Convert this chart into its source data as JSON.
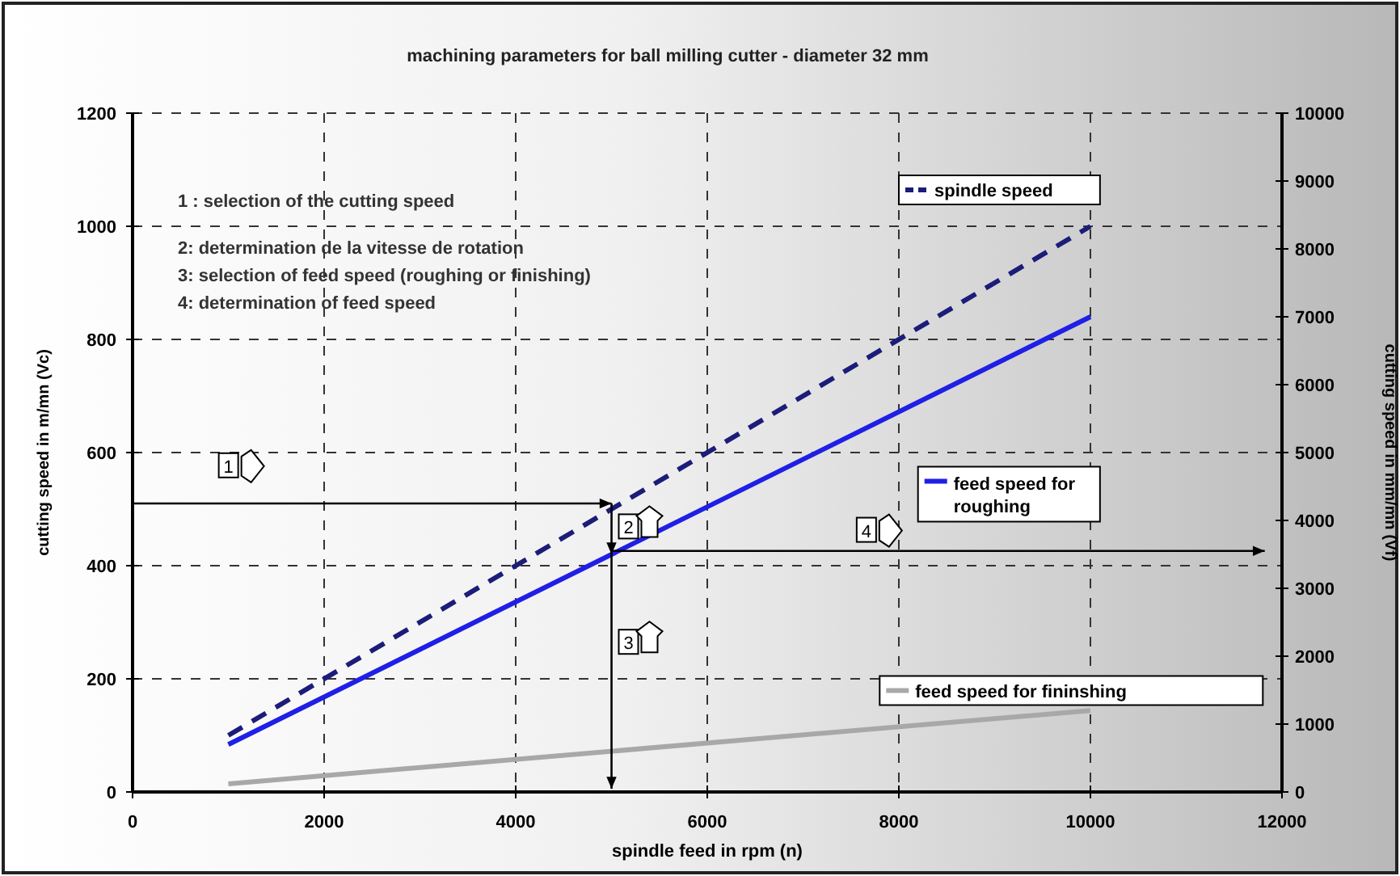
{
  "chart_data": {
    "type": "line",
    "title": "machining parameters for  ball milling cutter - diameter 32 mm",
    "xlabel": "spindle feed in rpm (n)",
    "ylabel": "cutting speed in m/mn (Vc)",
    "y2label": "cutting speed in mm/mn (Vf)",
    "x": [
      1000,
      10000
    ],
    "series": [
      {
        "name": "spindle speed",
        "color": "#1c1c7a",
        "values": [
          100,
          1000
        ],
        "line_style": "dashed"
      },
      {
        "name": "feed speed for roughing",
        "color": "#1f1fe6",
        "values": [
          700,
          7000
        ],
        "axis": "y2"
      },
      {
        "name": "feed speed for fininshing",
        "color": "#a8a8a8",
        "values": [
          120,
          1200
        ],
        "axis": "y2"
      }
    ],
    "xlim": [
      0,
      12000
    ],
    "xticks": [
      0,
      2000,
      4000,
      6000,
      8000,
      10000,
      12000
    ],
    "ylim": [
      0,
      1200
    ],
    "yticks": [
      0,
      200,
      400,
      600,
      800,
      1000,
      1200
    ],
    "y2lim": [
      0,
      10000
    ],
    "y2ticks": [
      0,
      1000,
      2000,
      3000,
      4000,
      5000,
      6000,
      7000,
      8000,
      9000,
      10000
    ],
    "grid": true,
    "legend": "right",
    "annotations": [
      "1 : selection of the cutting speed",
      "2: determination de la vitesse de rotation",
      "3: selection of feed speed (roughing or finishing)",
      "4: determination of feed speed",
      "1",
      "2",
      "3",
      "4"
    ]
  }
}
